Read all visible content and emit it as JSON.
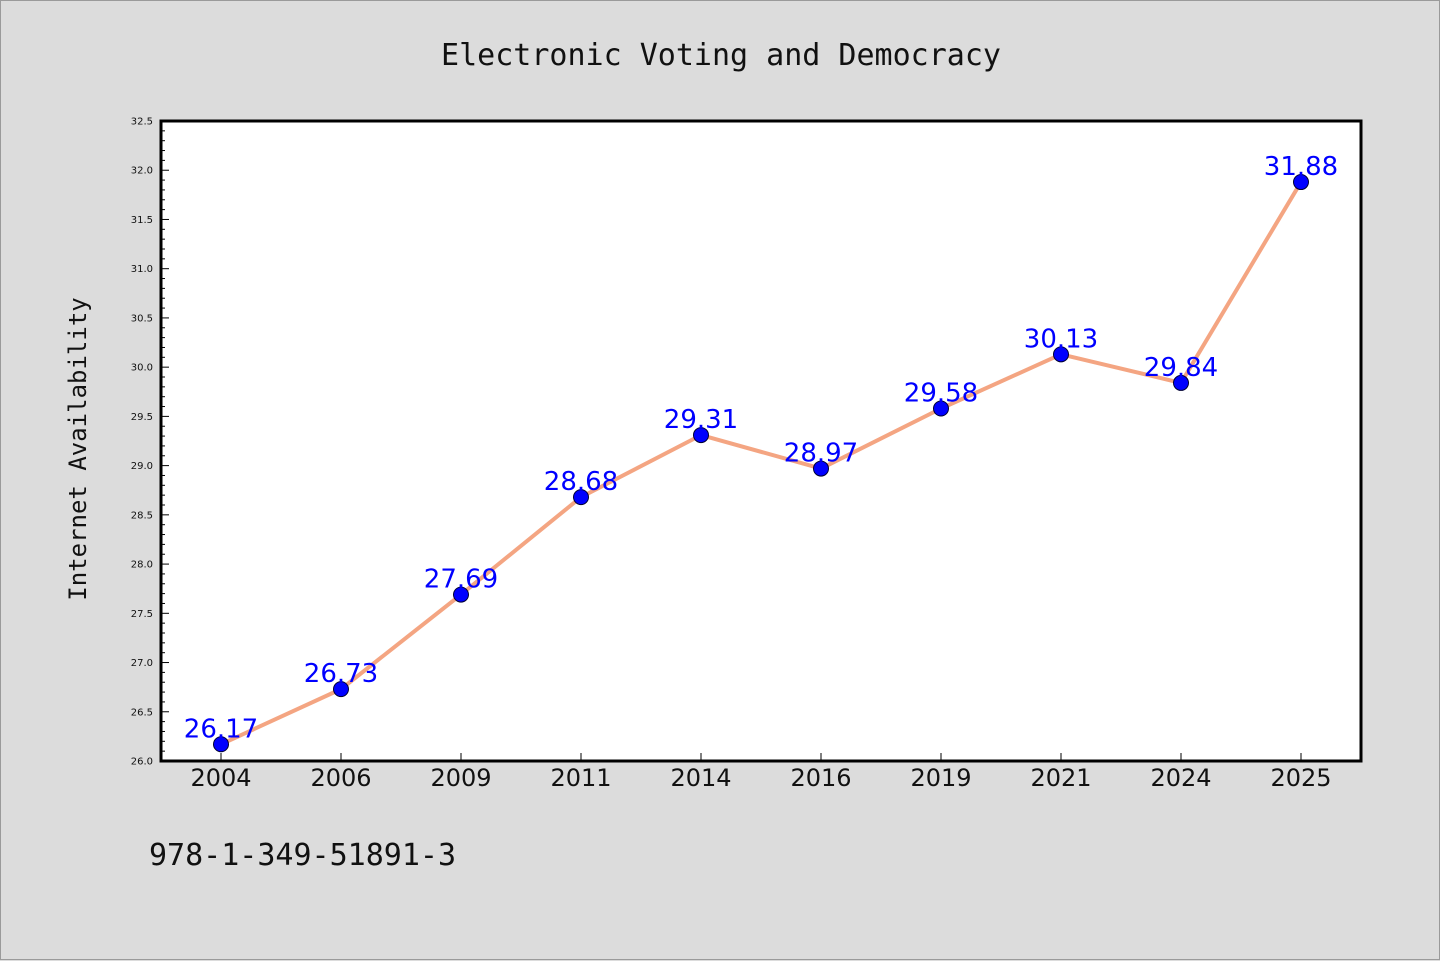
{
  "chart_data": {
    "type": "line",
    "title": "Electronic Voting and Democracy",
    "xlabel": "",
    "ylabel": "Internet Availability",
    "categories": [
      "2004",
      "2006",
      "2009",
      "2011",
      "2014",
      "2016",
      "2019",
      "2021",
      "2024",
      "2025"
    ],
    "values": [
      26.17,
      26.73,
      27.69,
      28.68,
      29.31,
      28.97,
      29.58,
      30.13,
      29.84,
      31.88
    ],
    "data_labels": [
      "26.17",
      "26.73",
      "27.69",
      "28.68",
      "29.31",
      "28.97",
      "29.58",
      "30.13",
      "29.84",
      "31.88"
    ],
    "ylim": [
      26.0,
      32.5
    ],
    "yticks": [
      "26.0",
      "26.5",
      "27.0",
      "27.5",
      "28.0",
      "28.5",
      "29.0",
      "29.5",
      "30.0",
      "30.5",
      "31.0",
      "31.5",
      "32.0",
      "32.5"
    ],
    "ytick_values": [
      26.0,
      26.5,
      27.0,
      27.5,
      28.0,
      28.5,
      29.0,
      29.5,
      30.0,
      30.5,
      31.0,
      31.5,
      32.0,
      32.5
    ],
    "grid": false,
    "line_color": "#f4a582",
    "marker_color": "#0000ff",
    "label_color": "#0000ff",
    "background_color": "#dcdcdc",
    "plot_background": "#ffffff"
  },
  "footer": {
    "text": "978-1-349-51891-3"
  }
}
